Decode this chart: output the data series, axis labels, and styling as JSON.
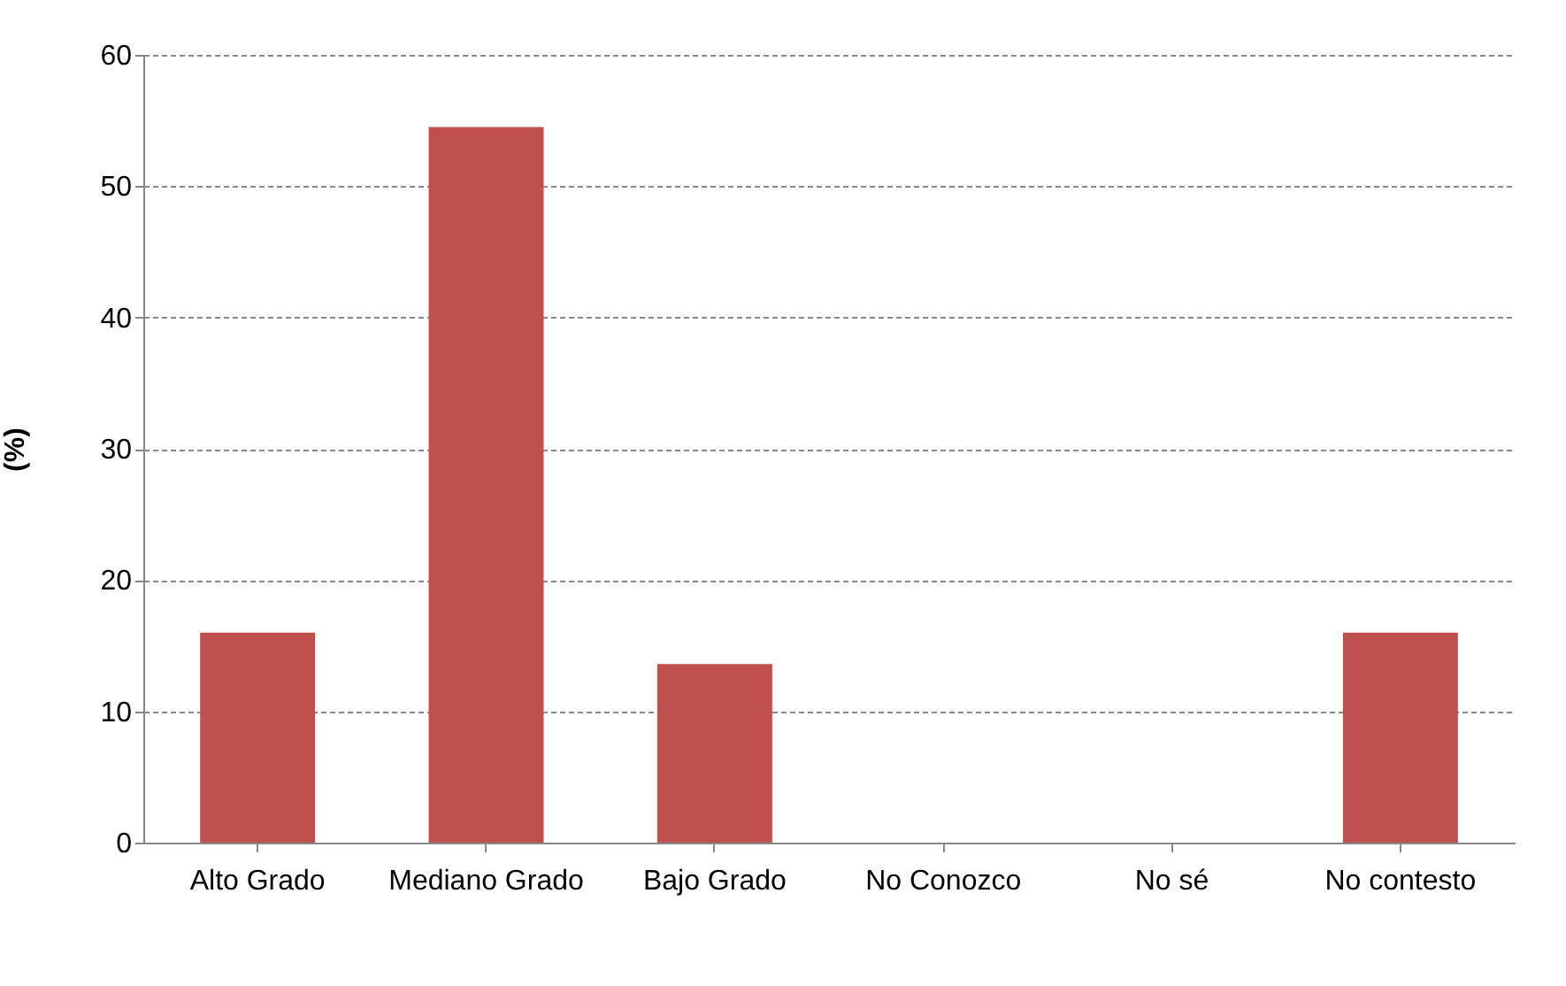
{
  "chart_data": {
    "type": "bar",
    "ylabel": "(%)",
    "categories": [
      "Alto Grado",
      "Mediano Grado",
      "Bajo Grado",
      "No Conozco",
      "No sé",
      "No contesto"
    ],
    "values": [
      16,
      54.5,
      13.6,
      0,
      0,
      16
    ],
    "color": "#c0504d",
    "ylim": [
      0,
      60
    ],
    "yticks": [
      0,
      10,
      20,
      30,
      40,
      50,
      60
    ],
    "grid": "y"
  }
}
